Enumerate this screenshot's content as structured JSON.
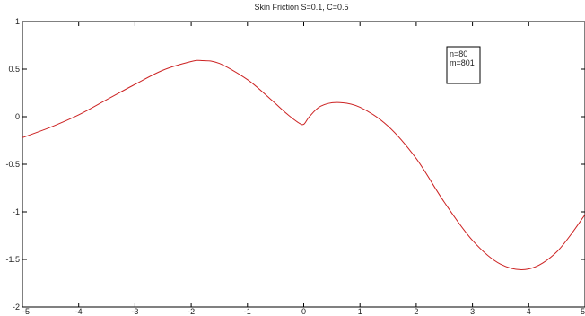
{
  "chart_data": {
    "type": "line",
    "title": "Skin Friction S=0.1, C=0.5",
    "xlabel": "",
    "ylabel": "",
    "xlim": [
      -5,
      5
    ],
    "ylim": [
      -2,
      1
    ],
    "xticks": [
      "-5",
      "-4",
      "-3",
      "-2",
      "-1",
      "0",
      "1",
      "2",
      "3",
      "4",
      "5"
    ],
    "yticks": [
      "1",
      "0.5",
      "0",
      "-0.5",
      "-1",
      "-1.5",
      "-2"
    ],
    "grid": false,
    "annotation": [
      "n=80",
      "m=801"
    ],
    "annotation_position": "top-right",
    "series": [
      {
        "color": "#cc2222",
        "x": [
          -5,
          -4.5,
          -4,
          -3.5,
          -3,
          -2.5,
          -2,
          -1.8,
          -1.5,
          -1,
          -0.6,
          -0.3,
          -0.1,
          0,
          0.1,
          0.3,
          0.6,
          1,
          1.5,
          2,
          2.5,
          3,
          3.5,
          4,
          4.5,
          5
        ],
        "y": [
          -0.22,
          -0.11,
          0.02,
          0.18,
          0.34,
          0.49,
          0.58,
          0.59,
          0.56,
          0.39,
          0.19,
          0.03,
          -0.06,
          -0.08,
          0.0,
          0.11,
          0.15,
          0.1,
          -0.1,
          -0.44,
          -0.9,
          -1.3,
          -1.55,
          -1.6,
          -1.42,
          -1.03
        ]
      }
    ]
  }
}
